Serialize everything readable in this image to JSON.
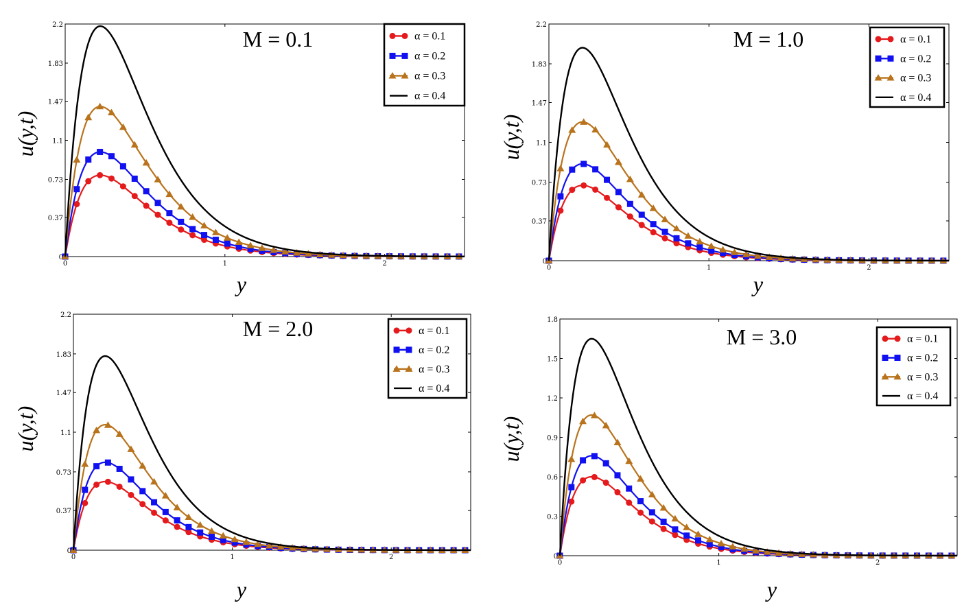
{
  "chart_data": [
    {
      "type": "line",
      "title": "M = 0.1",
      "xlabel": "y",
      "ylabel": "u(y,t)",
      "xlim": [
        0,
        2.5
      ],
      "ylim": [
        0,
        2.2
      ],
      "xticks": [
        "0",
        "1",
        "2"
      ],
      "yticks": [
        "0",
        "0.37",
        "0.73",
        "1.1",
        "1.47",
        "1.83",
        "2.2"
      ],
      "peak_y": 0.22,
      "series": [
        {
          "name": "α = 0.1",
          "marker": "circle",
          "color": "#e41a1c",
          "peak": 0.77
        },
        {
          "name": "α = 0.2",
          "marker": "square",
          "color": "#1010f0",
          "peak": 0.99
        },
        {
          "name": "α = 0.3",
          "marker": "triangle",
          "color": "#b8731c",
          "peak": 1.42
        },
        {
          "name": "α = 0.4",
          "marker": "none",
          "color": "#000000",
          "peak": 2.18
        }
      ]
    },
    {
      "type": "line",
      "title": "M = 1.0",
      "xlabel": "y",
      "ylabel": "u(y,t)",
      "xlim": [
        0,
        2.5
      ],
      "ylim": [
        0,
        2.2
      ],
      "xticks": [
        "0",
        "1",
        "2"
      ],
      "yticks": [
        "0",
        "0.37",
        "0.73",
        "1.1",
        "1.47",
        "1.83",
        "2.2"
      ],
      "peak_y": 0.21,
      "series": [
        {
          "name": "α = 0.1",
          "marker": "circle",
          "color": "#e41a1c",
          "peak": 0.7
        },
        {
          "name": "α = 0.2",
          "marker": "square",
          "color": "#1010f0",
          "peak": 0.9
        },
        {
          "name": "α = 0.3",
          "marker": "triangle",
          "color": "#b8731c",
          "peak": 1.29
        },
        {
          "name": "α = 0.4",
          "marker": "none",
          "color": "#000000",
          "peak": 1.98
        }
      ]
    },
    {
      "type": "line",
      "title": "M = 2.0",
      "xlabel": "y",
      "ylabel": "u(y,t)",
      "xlim": [
        0,
        2.5
      ],
      "ylim": [
        0,
        2.2
      ],
      "xticks": [
        "0",
        "1",
        "2"
      ],
      "yticks": [
        "0",
        "0.37",
        "0.73",
        "1.1",
        "1.47",
        "1.83",
        "2.2"
      ],
      "peak_y": 0.2,
      "series": [
        {
          "name": "α = 0.1",
          "marker": "circle",
          "color": "#e41a1c",
          "peak": 0.64
        },
        {
          "name": "α = 0.2",
          "marker": "square",
          "color": "#1010f0",
          "peak": 0.82
        },
        {
          "name": "α = 0.3",
          "marker": "triangle",
          "color": "#b8731c",
          "peak": 1.17
        },
        {
          "name": "α = 0.4",
          "marker": "none",
          "color": "#000000",
          "peak": 1.81
        }
      ]
    },
    {
      "type": "line",
      "title": "M = 3.0",
      "xlabel": "y",
      "ylabel": "u(y,t)",
      "xlim": [
        0,
        2.5
      ],
      "ylim": [
        0,
        1.8
      ],
      "xticks": [
        "0",
        "1",
        "2"
      ],
      "yticks": [
        "0",
        "0.3",
        "0.6",
        "0.9",
        "1.2",
        "1.5",
        "1.8"
      ],
      "peak_y": 0.2,
      "series": [
        {
          "name": "α = 0.1",
          "marker": "circle",
          "color": "#e41a1c",
          "peak": 0.6
        },
        {
          "name": "α = 0.2",
          "marker": "square",
          "color": "#1010f0",
          "peak": 0.76
        },
        {
          "name": "α = 0.3",
          "marker": "triangle",
          "color": "#b8731c",
          "peak": 1.07
        },
        {
          "name": "α = 0.4",
          "marker": "none",
          "color": "#000000",
          "peak": 1.65
        }
      ]
    }
  ]
}
